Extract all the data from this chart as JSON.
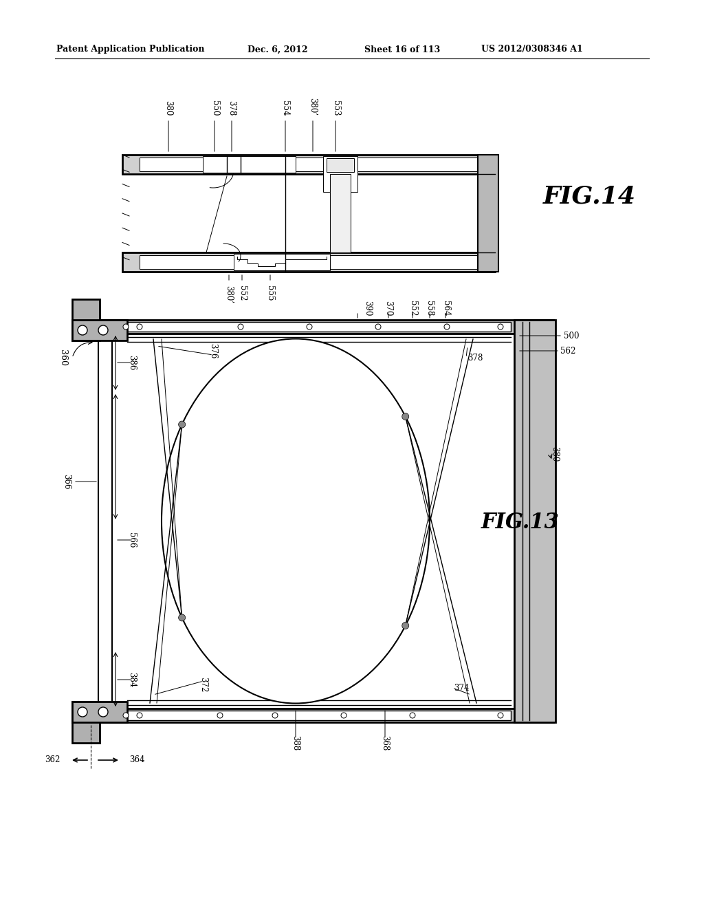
{
  "bg_color": "#ffffff",
  "line_color": "#000000",
  "header_text": "Patent Application Publication",
  "header_date": "Dec. 6, 2012",
  "header_sheet": "Sheet 16 of 113",
  "header_patent": "US 2012/0308346 A1",
  "fig14_label": "FIG.14",
  "fig13_label": "FIG.13"
}
